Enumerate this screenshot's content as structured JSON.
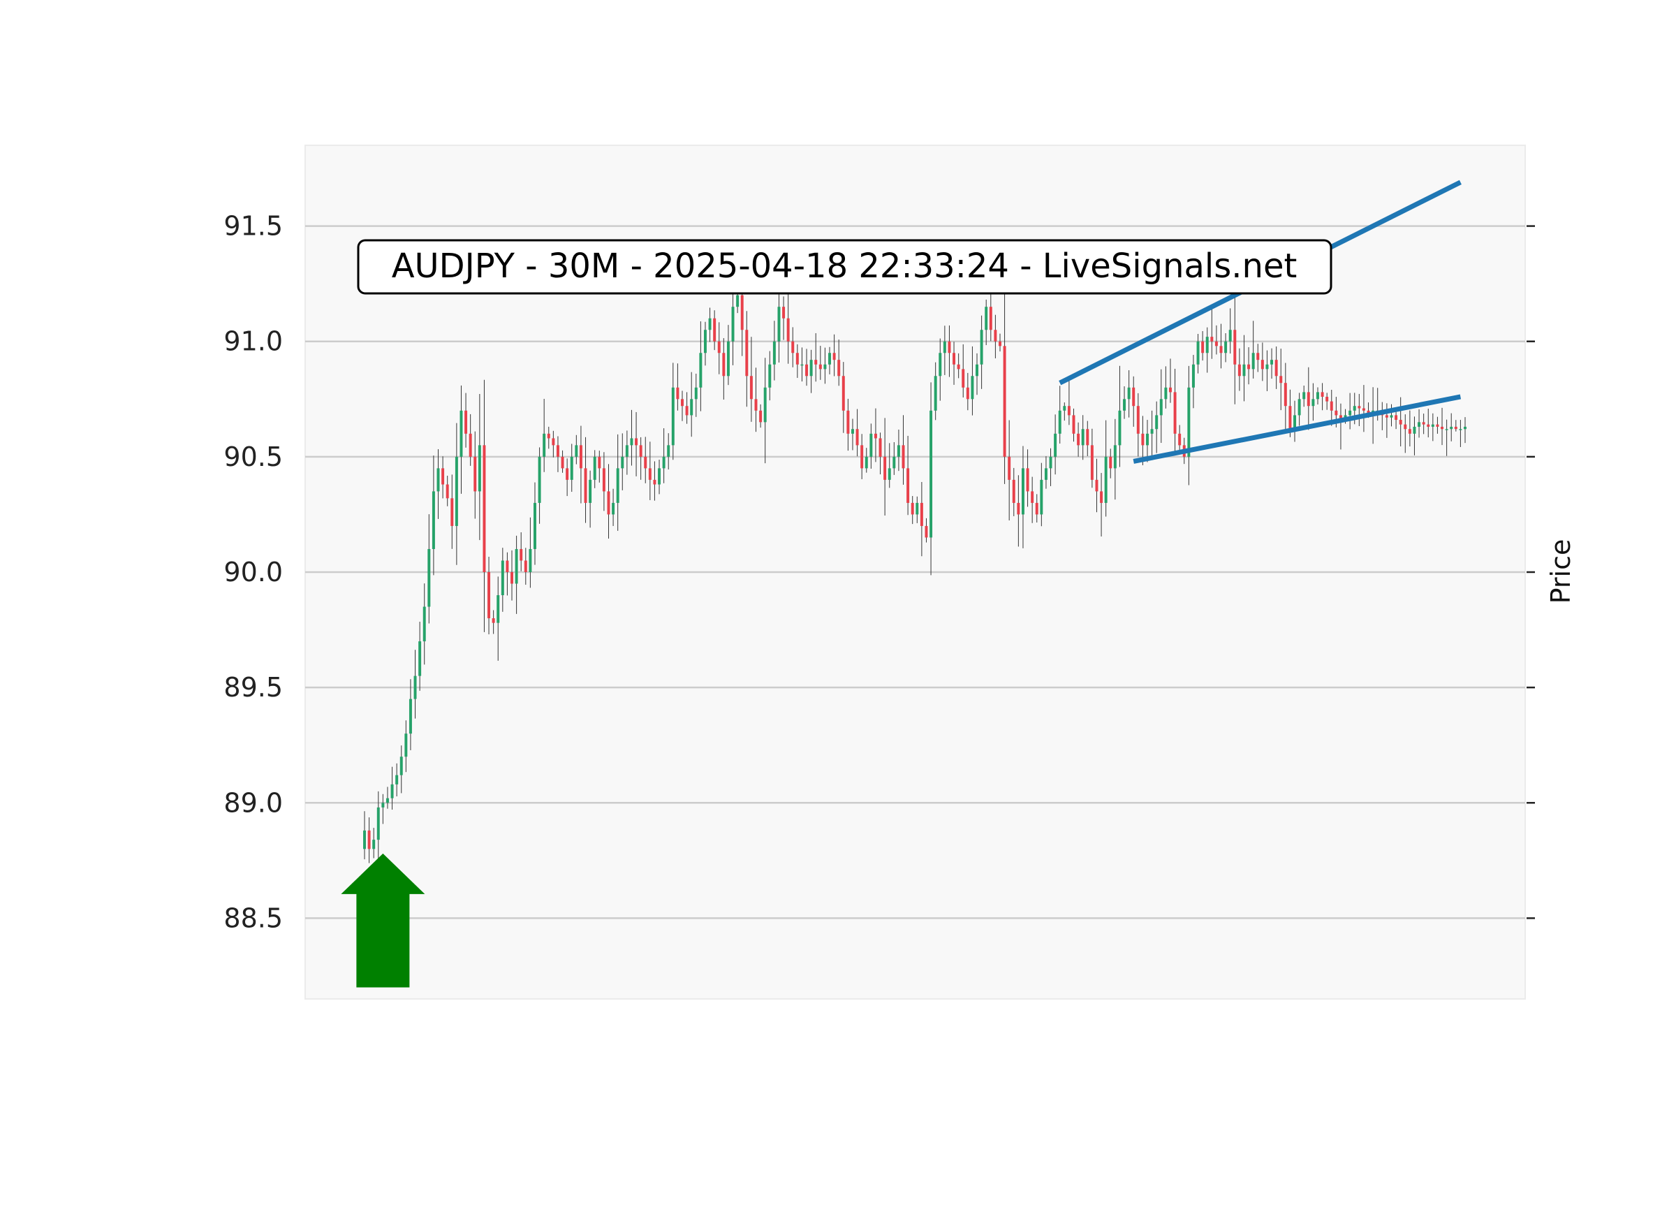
{
  "chart_data": {
    "type": "candlestick",
    "title": "AUDJPY - 30M - 2025-04-18 22:33:24 - LiveSignals.net",
    "ylabel": "Price",
    "xlabel": "",
    "ylim": [
      88.15,
      91.85
    ],
    "yticks": [
      "88.5",
      "89.0",
      "89.5",
      "90.0",
      "90.5",
      "91.0",
      "91.5"
    ],
    "grid": "horizontal",
    "y_axis_side": "right-ticks-left-labels",
    "colors": {
      "up": "#26a269",
      "down": "#e8404a",
      "wick": "#333333",
      "trendline": "#1f77b4",
      "arrow": "#008000",
      "plot_bg": "#f8f8f8",
      "grid": "#cccccc"
    },
    "candles": {
      "count": 240,
      "close": [
        88.88,
        88.8,
        88.84,
        88.98,
        89.0,
        89.02,
        89.08,
        89.12,
        89.2,
        89.3,
        89.45,
        89.55,
        89.7,
        89.85,
        90.1,
        90.35,
        90.45,
        90.38,
        90.32,
        90.2,
        90.5,
        90.7,
        90.6,
        90.5,
        90.35,
        90.55,
        90.0,
        89.8,
        89.78,
        89.9,
        90.05,
        90.0,
        89.95,
        90.1,
        90.05,
        90.0,
        90.1,
        90.3,
        90.5,
        90.6,
        90.58,
        90.55,
        90.5,
        90.45,
        90.4,
        90.5,
        90.55,
        90.45,
        90.3,
        90.4,
        90.5,
        90.45,
        90.35,
        90.25,
        90.3,
        90.45,
        90.5,
        90.55,
        90.58,
        90.55,
        90.5,
        90.45,
        90.4,
        90.38,
        90.45,
        90.5,
        90.55,
        90.8,
        90.75,
        90.72,
        90.68,
        90.75,
        90.8,
        90.95,
        91.05,
        91.1,
        91.0,
        90.95,
        90.85,
        91.0,
        91.15,
        91.2,
        91.05,
        90.85,
        90.75,
        90.7,
        90.65,
        90.8,
        90.9,
        91.0,
        91.15,
        91.1,
        91.0,
        90.95,
        90.9,
        90.9,
        90.85,
        90.92,
        90.9,
        90.88,
        90.9,
        90.95,
        90.92,
        90.85,
        90.7,
        90.6,
        90.62,
        90.55,
        90.45,
        90.5,
        90.6,
        90.58,
        90.5,
        90.4,
        90.45,
        90.5,
        90.55,
        90.45,
        90.3,
        90.25,
        90.3,
        90.2,
        90.15,
        90.7,
        90.85,
        90.95,
        91.0,
        90.95,
        90.9,
        90.88,
        90.8,
        90.75,
        90.85,
        90.9,
        91.05,
        91.15,
        91.05,
        91.0,
        90.98,
        90.5,
        90.4,
        90.3,
        90.25,
        90.45,
        90.35,
        90.3,
        90.25,
        90.4,
        90.45,
        90.5,
        90.6,
        90.7,
        90.72,
        90.68,
        90.6,
        90.55,
        90.62,
        90.55,
        90.4,
        90.35,
        90.3,
        90.5,
        90.45,
        90.55,
        90.7,
        90.75,
        90.8,
        90.72,
        90.6,
        90.55,
        90.6,
        90.62,
        90.68,
        90.75,
        90.8,
        90.78,
        90.6,
        90.55,
        90.5,
        90.8,
        90.9,
        91.0,
        90.95,
        91.02,
        91.0,
        90.98,
        90.95,
        91.0,
        91.05,
        90.9,
        90.85,
        90.9,
        90.88,
        90.95,
        90.92,
        90.88,
        90.9,
        90.92,
        90.85,
        90.82,
        90.72,
        90.62,
        90.68,
        90.75,
        90.78,
        90.72,
        90.75,
        90.78,
        90.76,
        90.74,
        90.7,
        90.68,
        90.66,
        90.68,
        90.7,
        90.72,
        90.71,
        90.7,
        90.69,
        90.7,
        90.7,
        90.68,
        90.67,
        90.68,
        90.66,
        90.64,
        90.62,
        90.6,
        90.63,
        90.65,
        90.64,
        90.63,
        90.64,
        90.63,
        90.62,
        90.62,
        90.63,
        90.62,
        90.62,
        90.63,
        90.62
      ]
    },
    "trendlines": [
      {
        "x": [
          151,
          238
        ],
        "y": [
          90.82,
          91.69
        ]
      },
      {
        "x": [
          167,
          238
        ],
        "y": [
          90.48,
          90.76
        ]
      }
    ],
    "annotations": [
      {
        "type": "arrow-up",
        "x": 4,
        "y_tip": 88.78,
        "y_base": 88.2
      }
    ]
  }
}
